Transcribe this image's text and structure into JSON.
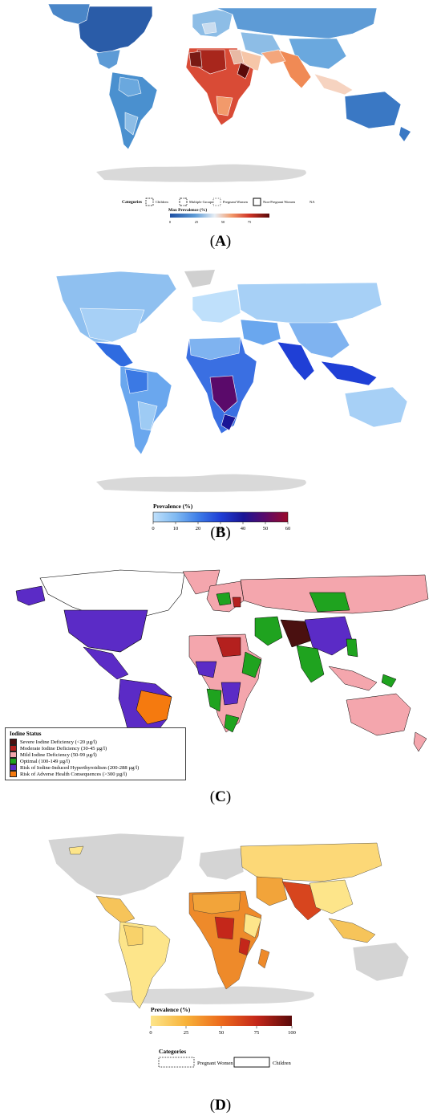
{
  "panels": {
    "A": {
      "label_open": "(",
      "label_letter": "A",
      "label_close": ")",
      "legend": {
        "categories_title": "Categories",
        "categories": [
          "Children",
          "Multiple Groups",
          "Pregnant Women",
          "Non-Pregnant Women"
        ],
        "na_label": "NA",
        "scale_title": "Max Prevalence (%)",
        "ticks": [
          "0",
          "25",
          "50",
          "75"
        ],
        "colors": [
          "#1d4fa3",
          "#5d9bd6",
          "#e8eef4",
          "#f29a6b",
          "#cf3326",
          "#5a0a0a"
        ]
      }
    },
    "B": {
      "label_open": "(",
      "label_letter": "B",
      "label_close": ")",
      "legend": {
        "scale_title": "Prevalence (%)",
        "ticks": [
          "0",
          "10",
          "20",
          "30",
          "40",
          "50",
          "60"
        ],
        "colors": [
          "#bfe0fb",
          "#7fb9f2",
          "#3f7fe8",
          "#1f3fd6",
          "#1a1596",
          "#5a0a6a",
          "#9b0a2a"
        ]
      }
    },
    "C": {
      "label_open": "(",
      "label_letter": "C",
      "label_close": ")",
      "legend": {
        "title": "Iodine Status",
        "items": [
          {
            "label": "Severe Iodine Deficiency (<20 µg/l)",
            "color": "#4a1010"
          },
          {
            "label": "Moderate Iodine Deficiency (30-45 µg/l)",
            "color": "#b4201e"
          },
          {
            "label": "Mild Iodine Deficiency (50-99 µg/l)",
            "color": "#f4a6ad"
          },
          {
            "label": "Optimal (100-149 µg/l)",
            "color": "#1fa31f"
          },
          {
            "label": "Risk of Iodine-Induced Hyperthyroidism (200-288 µg/l)",
            "color": "#5b2bc6"
          },
          {
            "label": "Risk of Adverse Health Consequences (>300 µg/l)",
            "color": "#f57a0f"
          }
        ]
      }
    },
    "D": {
      "label_open": "(",
      "label_letter": "D",
      "label_close": ")",
      "legend": {
        "scale_title": "Prevalence (%)",
        "ticks": [
          "0",
          "25",
          "50",
          "75",
          "100"
        ],
        "colors": [
          "#fde58a",
          "#f7b23a",
          "#ec6a1c",
          "#c4271a",
          "#5a0a0a"
        ],
        "categories_title": "Categories",
        "categories": [
          "Pregnant Women",
          "Children"
        ]
      }
    }
  }
}
